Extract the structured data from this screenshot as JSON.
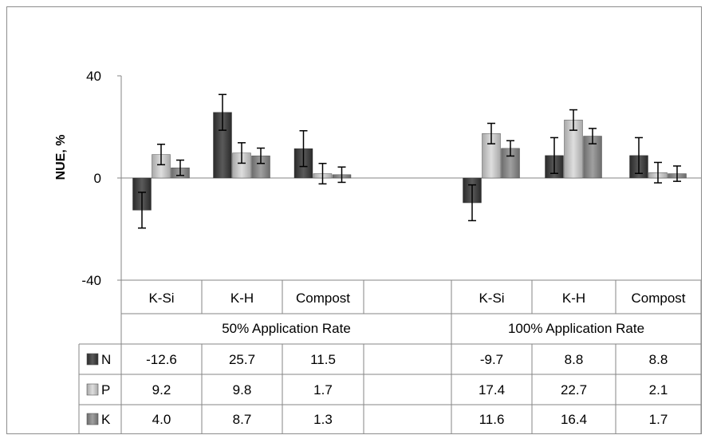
{
  "chart_data": {
    "type": "bar",
    "title": "",
    "xlabel": "",
    "ylabel": "NUE, %",
    "ylim": [
      -40,
      40
    ],
    "yticks": [
      -40,
      0,
      40
    ],
    "grid": false,
    "legend": "data-table",
    "groups": [
      {
        "label": "50% Application Rate",
        "categories": [
          "K-Si",
          "K-H",
          "Compost",
          ""
        ]
      },
      {
        "label": "100% Application Rate",
        "categories": [
          "K-Si",
          "K-H",
          "Compost"
        ]
      }
    ],
    "series": [
      {
        "name": "N",
        "color": "#404040",
        "values": [
          -12.6,
          25.7,
          11.5,
          null,
          -9.7,
          8.8,
          8.8
        ],
        "labels": [
          "-12.6",
          "25.7",
          "11.5",
          "",
          "-9.7",
          "8.8",
          "8.8"
        ],
        "error": [
          7,
          7,
          7,
          null,
          7,
          7,
          7
        ]
      },
      {
        "name": "P",
        "color": "#c4c4c4",
        "values": [
          9.2,
          9.8,
          1.7,
          null,
          17.4,
          22.7,
          2.1
        ],
        "labels": [
          "9.2",
          "9.8",
          "1.7",
          "",
          "17.4",
          "22.7",
          "2.1"
        ],
        "error": [
          4,
          4,
          4,
          null,
          4,
          4,
          4
        ]
      },
      {
        "name": "K",
        "color": "#8a8a8a",
        "values": [
          4.0,
          8.7,
          1.3,
          null,
          11.6,
          16.4,
          1.7
        ],
        "labels": [
          "4.0",
          "8.7",
          "1.3",
          "",
          "11.6",
          "16.4",
          "1.7"
        ],
        "error": [
          3,
          3,
          3,
          null,
          3,
          3,
          3
        ]
      }
    ]
  }
}
